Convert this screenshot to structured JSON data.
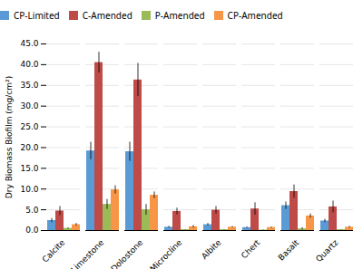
{
  "chart_data": {
    "type": "bar",
    "categories": [
      "Calcite",
      "Limestone",
      "Dolostone",
      "Microcline",
      "Albite",
      "Chert",
      "Basalt",
      "Quartz"
    ],
    "series": [
      {
        "name": "CP-Limited",
        "color": "#5B9BD5",
        "values": [
          2.4,
          19.2,
          19.0,
          0.8,
          1.4,
          0.7,
          6.0,
          2.3
        ],
        "errors": [
          0.5,
          2.1,
          2.3,
          0.2,
          0.3,
          0.15,
          0.9,
          0.4
        ]
      },
      {
        "name": "C-Amended",
        "color": "#BE4B48",
        "values": [
          4.7,
          40.5,
          36.3,
          4.6,
          4.9,
          5.2,
          9.4,
          5.7
        ],
        "errors": [
          1.1,
          2.5,
          4.0,
          0.8,
          0.9,
          1.5,
          1.6,
          1.4
        ]
      },
      {
        "name": "P-Amended",
        "color": "#9BBB59",
        "values": [
          0.5,
          6.3,
          5.0,
          0.2,
          0.2,
          0.1,
          0.4,
          0.2
        ],
        "errors": [
          0.15,
          1.2,
          1.3,
          0.05,
          0.05,
          0.05,
          0.3,
          0.05
        ]
      },
      {
        "name": "CP-Amended",
        "color": "#F79646",
        "values": [
          1.4,
          9.8,
          8.5,
          0.9,
          0.8,
          0.7,
          3.5,
          0.8
        ],
        "errors": [
          0.3,
          1.0,
          0.8,
          0.3,
          0.15,
          0.15,
          0.5,
          0.2
        ]
      }
    ],
    "ylabel": "Dry Biomass Biofilm (mg/cm²)",
    "ylim": [
      0,
      45.0
    ],
    "yticks": [
      {
        "value": 0.0,
        "label": "0.0"
      },
      {
        "value": 5.0,
        "label": "5.0"
      },
      {
        "value": 10.0,
        "label": "10.0"
      },
      {
        "value": 15.0,
        "label": "15.0"
      },
      {
        "value": 20.0,
        "label": "20.0"
      },
      {
        "value": 25.0,
        "label": "25.0"
      },
      {
        "value": 30.0,
        "label": "30.0"
      },
      {
        "value": 35.0,
        "label": "35.0"
      },
      {
        "value": 40.0,
        "label": "40.0"
      },
      {
        "value": 45.0,
        "label": "45.0"
      }
    ],
    "grid": true,
    "legend": "top"
  }
}
